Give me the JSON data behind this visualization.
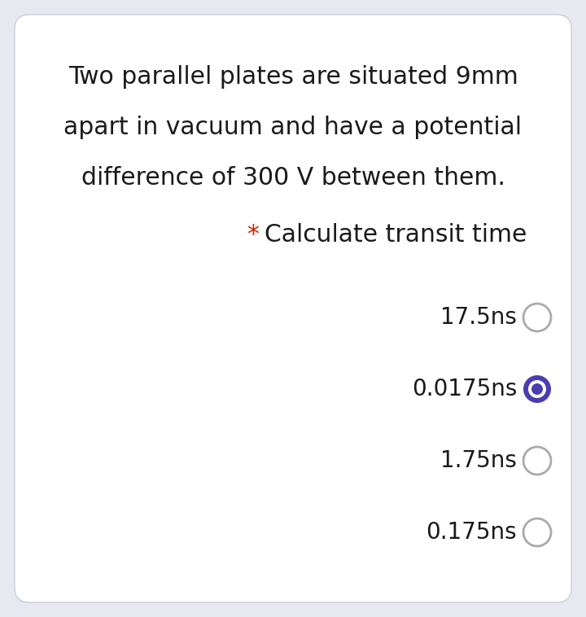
{
  "background_color": "#e8e8f0",
  "card_color": "#ffffff",
  "question_lines": [
    "Two parallel plates are situated 9mm",
    "apart in vacuum and have a potential",
    "difference of 300 V between them."
  ],
  "sub_question_star": "*",
  "sub_question_text": "Calculate transit time",
  "star_color": "#cc2200",
  "options": [
    {
      "label": "17.5ns",
      "selected": false
    },
    {
      "label": "0.0175ns",
      "selected": true
    },
    {
      "label": "1.75ns",
      "selected": false
    },
    {
      "label": "0.175ns",
      "selected": false
    }
  ],
  "option_text_color": "#1a1a1a",
  "radio_border_color": "#aaaaaa",
  "radio_selected_border": "#4a3db0",
  "radio_selected_fill": "#4a3db0",
  "radio_center_fill": "#ffffff",
  "text_font_size": 21.5,
  "sub_font_size": 21.5,
  "option_font_size": 20,
  "card_rounding": 18
}
